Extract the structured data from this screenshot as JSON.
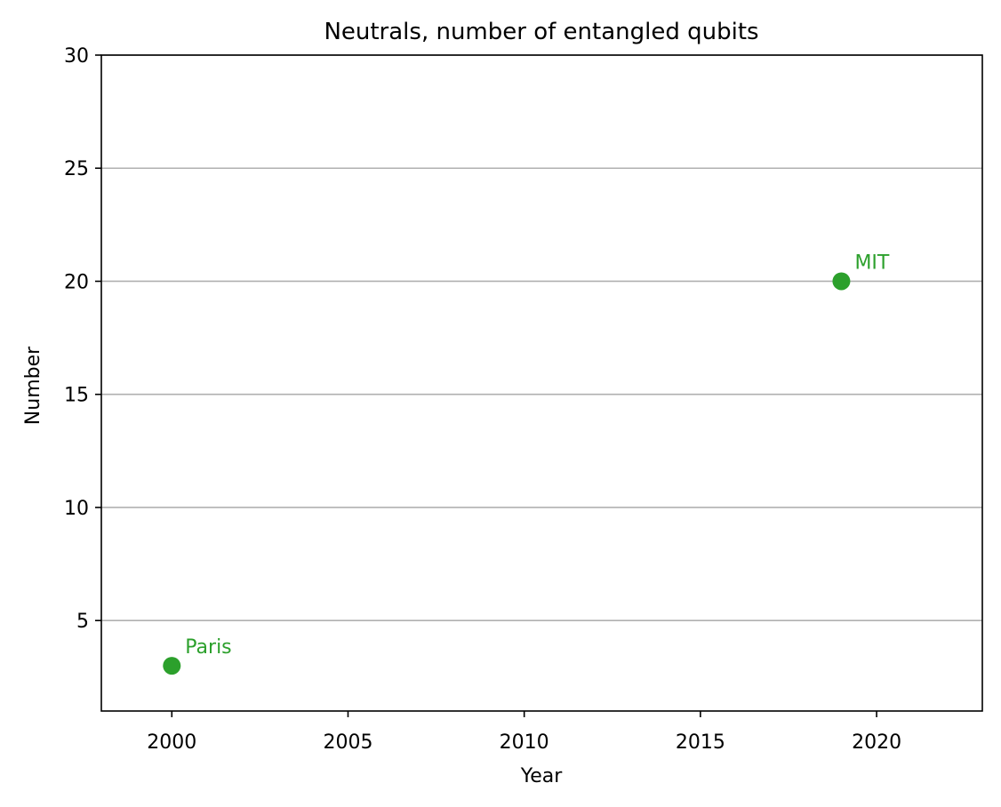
{
  "chart_data": {
    "type": "scatter",
    "title": "Neutrals, number of entangled qubits",
    "xlabel": "Year",
    "ylabel": "Number",
    "xlim": [
      1998,
      2023
    ],
    "ylim": [
      1,
      30
    ],
    "xticks": [
      2000,
      2005,
      2010,
      2015,
      2020
    ],
    "yticks": [
      5,
      10,
      15,
      20,
      25,
      30
    ],
    "grid": "horizontal",
    "color": "#2ca02c",
    "points": [
      {
        "x": 2000,
        "y": 3,
        "label": "Paris"
      },
      {
        "x": 2019,
        "y": 20,
        "label": "MIT"
      }
    ]
  }
}
